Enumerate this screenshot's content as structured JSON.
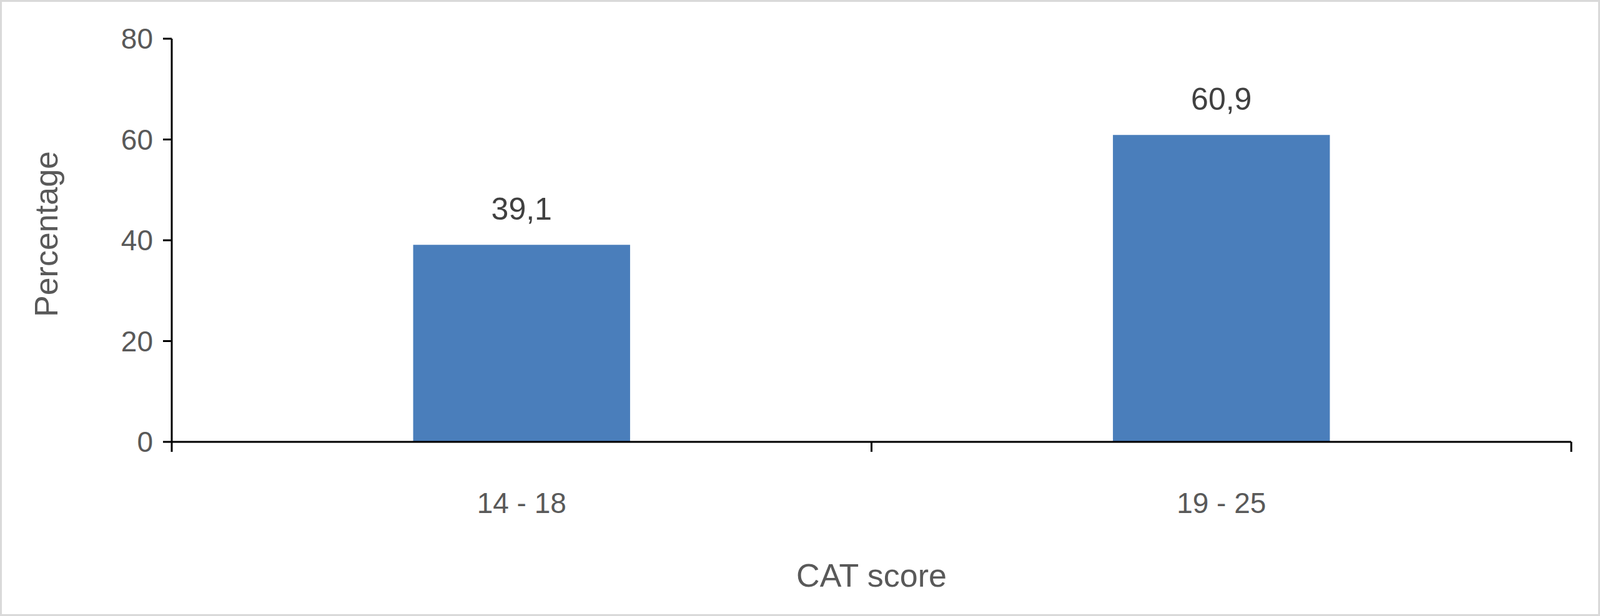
{
  "chart_data": {
    "type": "bar",
    "x_label": "CAT score",
    "y_label": "Percentage",
    "categories": [
      "14 - 18",
      "19 - 25"
    ],
    "values": [
      39.1,
      60.9
    ],
    "value_labels": [
      "39,1",
      "60,9"
    ],
    "color": "#4a7ebb",
    "ylim": [
      0,
      80
    ],
    "yticks": [
      0,
      20,
      40,
      60,
      80
    ],
    "grid": false,
    "data_labels": true
  }
}
